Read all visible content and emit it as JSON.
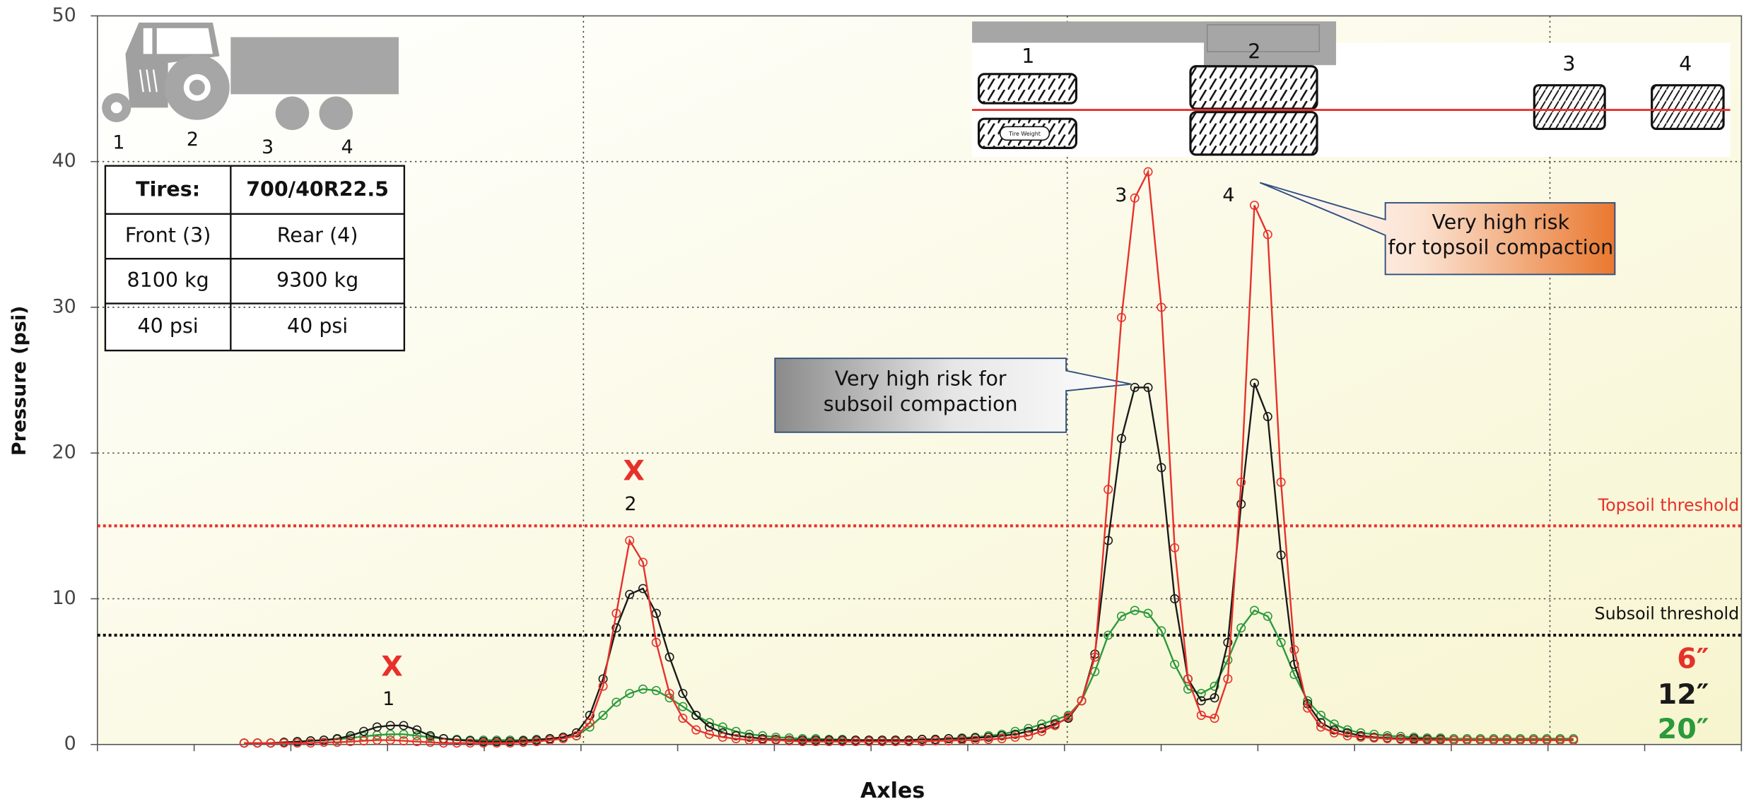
{
  "chart_data": {
    "type": "line",
    "ylabel": "Pressure (psi)",
    "xlabel": "Axles",
    "ylim": [
      0,
      50
    ],
    "yticks": [
      0,
      10,
      20,
      30,
      40,
      50
    ],
    "grid": true,
    "series": [
      {
        "name": "6″",
        "color": "#e8302a",
        "values": [
          0.1,
          0.1,
          0.1,
          0.1,
          0.1,
          0.1,
          0.15,
          0.15,
          0.2,
          0.25,
          0.3,
          0.3,
          0.25,
          0.2,
          0.15,
          0.1,
          0.1,
          0.1,
          0.1,
          0.1,
          0.1,
          0.15,
          0.2,
          0.3,
          0.4,
          0.6,
          1.5,
          4,
          9,
          14,
          12.5,
          7,
          3.5,
          1.8,
          1,
          0.7,
          0.5,
          0.4,
          0.3,
          0.3,
          0.3,
          0.25,
          0.2,
          0.2,
          0.2,
          0.2,
          0.2,
          0.2,
          0.2,
          0.2,
          0.2,
          0.2,
          0.25,
          0.25,
          0.3,
          0.3,
          0.35,
          0.4,
          0.5,
          0.6,
          0.9,
          1.3,
          1.9,
          3,
          6,
          17.5,
          29.3,
          37.5,
          39.3,
          30,
          13.5,
          4.5,
          2,
          1.8,
          4.5,
          18,
          37,
          35,
          18,
          6.5,
          2.5,
          1.2,
          0.8,
          0.6,
          0.5,
          0.45,
          0.4,
          0.35,
          0.3,
          0.3,
          0.3,
          0.3,
          0.3,
          0.3,
          0.3,
          0.3,
          0.3,
          0.3,
          0.3,
          0.3,
          0.3
        ]
      },
      {
        "name": "12″",
        "color": "#1a1a1a",
        "values": [
          0.1,
          0.1,
          0.1,
          0.15,
          0.2,
          0.25,
          0.3,
          0.4,
          0.6,
          0.9,
          1.2,
          1.3,
          1.3,
          1.0,
          0.6,
          0.4,
          0.3,
          0.25,
          0.2,
          0.2,
          0.2,
          0.25,
          0.3,
          0.4,
          0.5,
          0.8,
          2,
          4.5,
          8,
          10.3,
          10.7,
          9,
          6,
          3.5,
          2,
          1.2,
          0.8,
          0.6,
          0.5,
          0.4,
          0.35,
          0.3,
          0.3,
          0.3,
          0.3,
          0.3,
          0.3,
          0.3,
          0.3,
          0.3,
          0.3,
          0.35,
          0.35,
          0.4,
          0.4,
          0.45,
          0.5,
          0.6,
          0.7,
          0.9,
          1.1,
          1.4,
          1.8,
          3,
          6.2,
          14,
          21,
          24.5,
          24.5,
          19,
          10,
          4.5,
          3,
          3.2,
          7,
          16.5,
          24.8,
          22.5,
          13,
          5.5,
          2.8,
          1.5,
          1,
          0.8,
          0.6,
          0.5,
          0.45,
          0.4,
          0.4,
          0.35,
          0.35,
          0.3,
          0.3,
          0.3,
          0.3,
          0.3,
          0.3,
          0.3,
          0.3,
          0.3,
          0.3
        ]
      },
      {
        "name": "20″",
        "color": "#2a9a3a",
        "values": [
          0.1,
          0.1,
          0.1,
          0.15,
          0.2,
          0.25,
          0.3,
          0.35,
          0.45,
          0.55,
          0.65,
          0.7,
          0.7,
          0.6,
          0.5,
          0.4,
          0.35,
          0.3,
          0.3,
          0.3,
          0.3,
          0.3,
          0.35,
          0.4,
          0.5,
          0.6,
          1.2,
          2,
          2.9,
          3.5,
          3.8,
          3.7,
          3.2,
          2.6,
          2,
          1.5,
          1.2,
          0.9,
          0.7,
          0.6,
          0.5,
          0.45,
          0.4,
          0.4,
          0.35,
          0.35,
          0.3,
          0.3,
          0.3,
          0.3,
          0.3,
          0.35,
          0.35,
          0.4,
          0.45,
          0.5,
          0.6,
          0.7,
          0.9,
          1.1,
          1.4,
          1.7,
          2,
          3,
          5,
          7.5,
          8.8,
          9.2,
          9,
          7.8,
          5.5,
          3.8,
          3.5,
          4,
          5.8,
          8,
          9.2,
          8.8,
          7,
          4.8,
          3,
          2,
          1.4,
          1,
          0.8,
          0.7,
          0.6,
          0.55,
          0.5,
          0.45,
          0.45,
          0.4,
          0.4,
          0.4,
          0.4,
          0.4,
          0.4,
          0.4,
          0.4,
          0.4,
          0.4
        ]
      }
    ],
    "thresholds": [
      {
        "label": "Topsoil threshold",
        "value": 15,
        "color": "#e8302a"
      },
      {
        "label": "Subsoil threshold",
        "value": 7.5,
        "color": "#111111"
      }
    ],
    "axle_marks": [
      "X",
      "X"
    ],
    "peak_labels": [
      "1",
      "2",
      "3",
      "4"
    ],
    "callouts": [
      "Very high risk for subsoil compaction",
      "Very high risk for topsoil compaction"
    ]
  },
  "tractor_labels": [
    "1",
    "2",
    "3",
    "4"
  ],
  "table": {
    "rows": [
      [
        "Tires:",
        "700/40R22.5"
      ],
      [
        "Front (3)",
        "Rear (4)"
      ],
      [
        "8100 kg",
        "9300 kg"
      ],
      [
        "40 psi",
        "40 psi"
      ]
    ]
  },
  "tire_diagram": {
    "labels": [
      "1",
      "2",
      "3",
      "4"
    ],
    "tire_weight": "Tire Weight"
  }
}
